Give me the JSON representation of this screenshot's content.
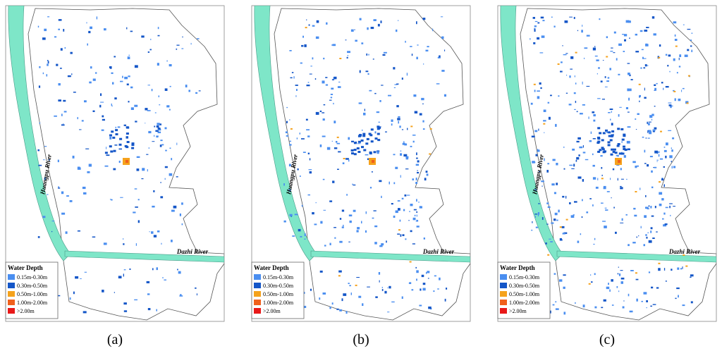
{
  "panels": [
    {
      "label": "(a)"
    },
    {
      "label": "(b)"
    },
    {
      "label": "(c)"
    }
  ],
  "legend": {
    "title": "Water Depth",
    "items": [
      {
        "label": "0.15m-0.30m",
        "color": "#4a8ef0"
      },
      {
        "label": "0.30m-0.50m",
        "color": "#1456c8"
      },
      {
        "label": "0.50m-1.00m",
        "color": "#f5a21c"
      },
      {
        "label": "1.00m-2.00m",
        "color": "#f0601c"
      },
      {
        "label": ">2.00m",
        "color": "#e81818"
      }
    ]
  },
  "rivers": {
    "huangpu": "Huangpu River",
    "dazhi": "Dazhi River"
  }
}
